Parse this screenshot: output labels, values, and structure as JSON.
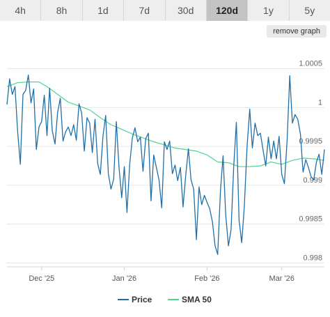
{
  "tabs": [
    {
      "label": "4h",
      "active": false
    },
    {
      "label": "8h",
      "active": false
    },
    {
      "label": "1d",
      "active": false
    },
    {
      "label": "7d",
      "active": false
    },
    {
      "label": "30d",
      "active": false
    },
    {
      "label": "120d",
      "active": true
    },
    {
      "label": "1y",
      "active": false
    },
    {
      "label": "5y",
      "active": false
    }
  ],
  "remove_graph_label": "remove graph",
  "chart_data": {
    "type": "line",
    "title": "",
    "xlabel": "",
    "ylabel": "",
    "ylim": [
      0.99795,
      1.00082
    ],
    "xlim": [
      "2025-11-18",
      "2026-03-17"
    ],
    "yticks": [
      {
        "value": 0.998,
        "label": "0.998"
      },
      {
        "value": 0.9985,
        "label": "0.9985"
      },
      {
        "value": 0.999,
        "label": "0.999"
      },
      {
        "value": 0.9995,
        "label": "0.9995"
      },
      {
        "value": 1.0,
        "label": "1"
      },
      {
        "value": 1.0005,
        "label": "1.0005"
      }
    ],
    "xticks": [
      {
        "date": "2025-12-01",
        "label": "Dec '25"
      },
      {
        "date": "2026-01-01",
        "label": "Jan '26"
      },
      {
        "date": "2026-02-01",
        "label": "Feb '26"
      },
      {
        "date": "2026-03-01",
        "label": "Mar '26"
      }
    ],
    "grid": true,
    "legend_position": "bottom",
    "series": [
      {
        "name": "Price",
        "color": "#1f6fa8",
        "points": [
          [
            "2025-11-18",
            1.00004
          ],
          [
            "2025-11-19",
            1.00037
          ],
          [
            "2025-11-20",
            1.00017
          ],
          [
            "2025-11-21",
            1.00027
          ],
          [
            "2025-11-22",
            0.9997
          ],
          [
            "2025-11-23",
            0.99927
          ],
          [
            "2025-11-24",
            1.00017
          ],
          [
            "2025-11-25",
            1.00022
          ],
          [
            "2025-11-26",
            1.00042
          ],
          [
            "2025-11-27",
            1.00006
          ],
          [
            "2025-11-28",
            1.00024
          ],
          [
            "2025-11-29",
            0.99946
          ],
          [
            "2025-11-30",
            0.99975
          ],
          [
            "2025-12-01",
            0.99982
          ],
          [
            "2025-12-02",
            1.00016
          ],
          [
            "2025-12-03",
            0.99964
          ],
          [
            "2025-12-04",
            1.00025
          ],
          [
            "2025-12-05",
            0.9997
          ],
          [
            "2025-12-06",
            0.99953
          ],
          [
            "2025-12-07",
            0.99994
          ],
          [
            "2025-12-08",
            1.00012
          ],
          [
            "2025-12-09",
            0.99957
          ],
          [
            "2025-12-10",
            0.99969
          ],
          [
            "2025-12-11",
            0.99975
          ],
          [
            "2025-12-12",
            0.99964
          ],
          [
            "2025-12-13",
            0.99978
          ],
          [
            "2025-12-14",
            0.99958
          ],
          [
            "2025-12-15",
            1.00005
          ],
          [
            "2025-12-16",
            0.99993
          ],
          [
            "2025-12-17",
            0.99944
          ],
          [
            "2025-12-18",
            0.99987
          ],
          [
            "2025-12-19",
            0.9998
          ],
          [
            "2025-12-20",
            0.99942
          ],
          [
            "2025-12-21",
            0.99985
          ],
          [
            "2025-12-22",
            0.99928
          ],
          [
            "2025-12-23",
            0.99914
          ],
          [
            "2025-12-24",
            0.99963
          ],
          [
            "2025-12-25",
            0.9999
          ],
          [
            "2025-12-26",
            0.99915
          ],
          [
            "2025-12-27",
            0.99895
          ],
          [
            "2025-12-28",
            0.99908
          ],
          [
            "2025-12-29",
            0.99982
          ],
          [
            "2025-12-30",
            0.99924
          ],
          [
            "2025-12-31",
            0.99884
          ],
          [
            "2026-01-01",
            0.99924
          ],
          [
            "2026-01-02",
            0.99865
          ],
          [
            "2026-01-03",
            0.99927
          ],
          [
            "2026-01-04",
            0.99961
          ],
          [
            "2026-01-05",
            0.99974
          ],
          [
            "2026-01-06",
            0.99956
          ],
          [
            "2026-01-07",
            0.99962
          ],
          [
            "2026-01-08",
            0.99918
          ],
          [
            "2026-01-09",
            0.9996
          ],
          [
            "2026-01-10",
            0.99967
          ],
          [
            "2026-01-11",
            0.9988
          ],
          [
            "2026-01-12",
            0.99939
          ],
          [
            "2026-01-13",
            0.99923
          ],
          [
            "2026-01-14",
            0.99907
          ],
          [
            "2026-01-15",
            0.99871
          ],
          [
            "2026-01-16",
            0.99956
          ],
          [
            "2026-01-17",
            0.99946
          ],
          [
            "2026-01-18",
            0.99957
          ],
          [
            "2026-01-19",
            0.99915
          ],
          [
            "2026-01-20",
            0.99926
          ],
          [
            "2026-01-21",
            0.99906
          ],
          [
            "2026-01-22",
            0.99923
          ],
          [
            "2026-01-23",
            0.99872
          ],
          [
            "2026-01-24",
            0.99912
          ],
          [
            "2026-01-25",
            0.99947
          ],
          [
            "2026-01-26",
            0.99907
          ],
          [
            "2026-01-27",
            0.99895
          ],
          [
            "2026-01-28",
            0.9983
          ],
          [
            "2026-01-29",
            0.99898
          ],
          [
            "2026-01-30",
            0.99875
          ],
          [
            "2026-01-31",
            0.99887
          ],
          [
            "2026-02-01",
            0.99878
          ],
          [
            "2026-02-02",
            0.9987
          ],
          [
            "2026-02-03",
            0.99853
          ],
          [
            "2026-02-04",
            0.99822
          ],
          [
            "2026-02-05",
            0.99811
          ],
          [
            "2026-02-06",
            0.99892
          ],
          [
            "2026-02-07",
            0.99938
          ],
          [
            "2026-02-08",
            0.99862
          ],
          [
            "2026-02-09",
            0.99822
          ],
          [
            "2026-02-10",
            0.99843
          ],
          [
            "2026-02-11",
            0.99924
          ],
          [
            "2026-02-12",
            0.99981
          ],
          [
            "2026-02-13",
            0.99855
          ],
          [
            "2026-02-14",
            0.99826
          ],
          [
            "2026-02-15",
            0.99874
          ],
          [
            "2026-02-16",
            0.9995
          ],
          [
            "2026-02-17",
            0.99998
          ],
          [
            "2026-02-18",
            0.99948
          ],
          [
            "2026-02-19",
            0.9998
          ],
          [
            "2026-02-20",
            0.99964
          ],
          [
            "2026-02-21",
            0.99967
          ],
          [
            "2026-02-22",
            0.99945
          ],
          [
            "2026-02-23",
            0.99925
          ],
          [
            "2026-02-24",
            0.99962
          ],
          [
            "2026-02-25",
            0.99934
          ],
          [
            "2026-02-26",
            0.99957
          ],
          [
            "2026-02-27",
            0.99934
          ],
          [
            "2026-02-28",
            0.99963
          ],
          [
            "2026-03-01",
            0.99914
          ],
          [
            "2026-03-02",
            0.99902
          ],
          [
            "2026-03-03",
            0.99958
          ],
          [
            "2026-03-04",
            1.00041
          ],
          [
            "2026-03-05",
            0.9998
          ],
          [
            "2026-03-06",
            0.99991
          ],
          [
            "2026-03-07",
            0.99985
          ],
          [
            "2026-03-08",
            0.99966
          ],
          [
            "2026-03-09",
            0.99917
          ],
          [
            "2026-03-10",
            0.99933
          ],
          [
            "2026-03-11",
            0.99923
          ],
          [
            "2026-03-12",
            0.99911
          ],
          [
            "2026-03-13",
            0.99907
          ],
          [
            "2026-03-14",
            0.9993
          ],
          [
            "2026-03-15",
            0.9994
          ],
          [
            "2026-03-16",
            0.99914
          ],
          [
            "2026-03-17",
            0.99946
          ]
        ]
      },
      {
        "name": "SMA 50",
        "color": "#4cd68e",
        "points": [
          [
            "2025-11-18",
            1.00027
          ],
          [
            "2025-11-22",
            1.00032
          ],
          [
            "2025-11-26",
            1.00033
          ],
          [
            "2025-11-30",
            1.00033
          ],
          [
            "2025-12-03",
            1.00027
          ],
          [
            "2025-12-07",
            1.00017
          ],
          [
            "2025-12-11",
            1.00007
          ],
          [
            "2025-12-15",
            1.00002
          ],
          [
            "2025-12-19",
            0.99997
          ],
          [
            "2025-12-23",
            0.99987
          ],
          [
            "2025-12-27",
            0.99978
          ],
          [
            "2025-12-31",
            0.99972
          ],
          [
            "2026-01-04",
            0.99966
          ],
          [
            "2026-01-08",
            0.99961
          ],
          [
            "2026-01-12",
            0.99956
          ],
          [
            "2026-01-16",
            0.99952
          ],
          [
            "2026-01-20",
            0.99948
          ],
          [
            "2026-01-24",
            0.99946
          ],
          [
            "2026-01-28",
            0.99944
          ],
          [
            "2026-02-01",
            0.99939
          ],
          [
            "2026-02-05",
            0.9993
          ],
          [
            "2026-02-09",
            0.99929
          ],
          [
            "2026-02-13",
            0.99924
          ],
          [
            "2026-02-17",
            0.99924
          ],
          [
            "2026-02-21",
            0.99925
          ],
          [
            "2026-02-25",
            0.9993
          ],
          [
            "2026-03-01",
            0.99927
          ],
          [
            "2026-03-05",
            0.99932
          ],
          [
            "2026-03-09",
            0.99935
          ],
          [
            "2026-03-13",
            0.99934
          ],
          [
            "2026-03-17",
            0.99932
          ]
        ]
      }
    ]
  }
}
